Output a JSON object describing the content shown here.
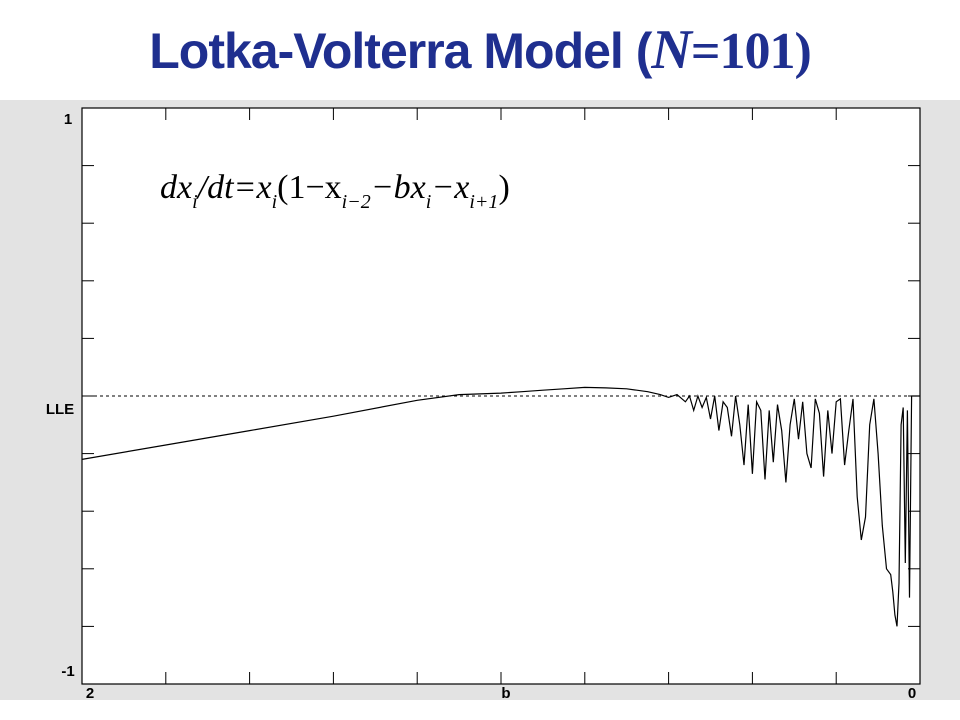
{
  "title": {
    "prefix": "Lotka-Volterra Model (",
    "variable": "N",
    "suffix": "=101)"
  },
  "equation": {
    "lhs_a": "dx",
    "sub_i1": "i",
    "lhs_b": "/dt=x",
    "sub_i2": "i",
    "paren": "(1−x",
    "sub_im2": "i−2",
    "mid": "−bx",
    "sub_i3": "i",
    "minus_x": "−x",
    "sub_ip1": "i+1",
    "close": ")"
  },
  "chart_data": {
    "type": "line",
    "title": "",
    "xlabel": "b",
    "ylabel": "LLE",
    "x_tick_labels": {
      "left": "2",
      "center": "b",
      "right": "0"
    },
    "y_tick_labels": {
      "top": "1",
      "middle": "LLE",
      "bottom": "-1"
    },
    "xlim": [
      2,
      0
    ],
    "ylim": [
      -1,
      1
    ],
    "zero_line": {
      "y": 0,
      "style": "dashed"
    },
    "grid": false,
    "series": [
      {
        "x": [
          2.0,
          1.8,
          1.6,
          1.4,
          1.2,
          1.1,
          1.0,
          0.95,
          0.9,
          0.85,
          0.8,
          0.75,
          0.7,
          0.65,
          0.62,
          0.6,
          0.58,
          0.56,
          0.55,
          0.54,
          0.53,
          0.52,
          0.51,
          0.5,
          0.49,
          0.48,
          0.47,
          0.46,
          0.45,
          0.44,
          0.43,
          0.42,
          0.41,
          0.4,
          0.39,
          0.38,
          0.37,
          0.36,
          0.35,
          0.34,
          0.33,
          0.32,
          0.31,
          0.3,
          0.29,
          0.28,
          0.27,
          0.26,
          0.25,
          0.24,
          0.23,
          0.22,
          0.21,
          0.2,
          0.19,
          0.18,
          0.17,
          0.16,
          0.15,
          0.14,
          0.13,
          0.12,
          0.11,
          0.1,
          0.09,
          0.08,
          0.07,
          0.065,
          0.06,
          0.055,
          0.05,
          0.045,
          0.04,
          0.035,
          0.03,
          0.025,
          0.02,
          0.015,
          0.0
        ],
        "y": [
          -0.22,
          -0.17,
          -0.12,
          -0.07,
          -0.015,
          0.005,
          0.01,
          0.015,
          0.02,
          0.025,
          0.03,
          0.028,
          0.025,
          0.015,
          0.005,
          -0.005,
          0.005,
          -0.02,
          0.0,
          -0.05,
          0.0,
          -0.04,
          -0.005,
          -0.08,
          0.0,
          -0.12,
          -0.02,
          -0.04,
          -0.14,
          0.0,
          -0.1,
          -0.24,
          -0.03,
          -0.27,
          -0.02,
          -0.05,
          -0.29,
          -0.05,
          -0.23,
          -0.03,
          -0.12,
          -0.3,
          -0.1,
          -0.01,
          -0.15,
          -0.02,
          -0.2,
          -0.25,
          -0.01,
          -0.06,
          -0.28,
          -0.05,
          -0.2,
          -0.02,
          -0.01,
          -0.24,
          -0.12,
          -0.01,
          -0.35,
          -0.5,
          -0.42,
          -0.1,
          -0.01,
          -0.2,
          -0.45,
          -0.6,
          -0.62,
          -0.68,
          -0.76,
          -0.8,
          -0.65,
          -0.1,
          -0.04,
          -0.58,
          -0.05,
          -0.7,
          0.0,
          0.0,
          0.0
        ]
      }
    ]
  }
}
